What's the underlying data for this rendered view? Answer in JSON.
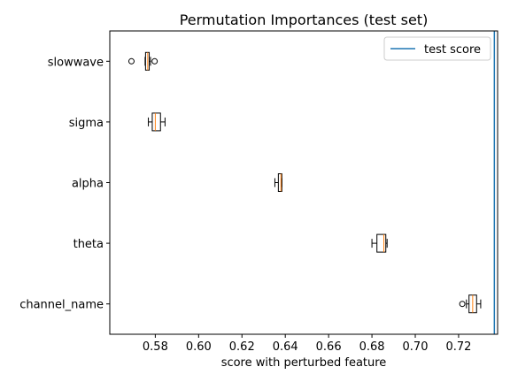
{
  "chart_data": {
    "type": "boxplot",
    "orientation": "horizontal",
    "title": "Permutation Importances (test set)",
    "xlabel": "score with perturbed feature",
    "ylabel": "",
    "xlim": [
      0.559,
      0.738
    ],
    "xticks": [
      0.58,
      0.6,
      0.62,
      0.64,
      0.66,
      0.68,
      0.7,
      0.72
    ],
    "xtick_labels": [
      "0.58",
      "0.60",
      "0.62",
      "0.64",
      "0.66",
      "0.68",
      "0.70",
      "0.72"
    ],
    "grid": false,
    "legend": {
      "position": "top-right",
      "entries": [
        "test score"
      ]
    },
    "categories": [
      "slowwave",
      "sigma",
      "alpha",
      "theta",
      "channel_name"
    ],
    "boxes": [
      {
        "name": "slowwave",
        "whisker_low": 0.5753,
        "q1": 0.5755,
        "median": 0.5765,
        "q3": 0.5772,
        "whisker_high": 0.5778,
        "outliers": [
          0.569,
          0.5797
        ]
      },
      {
        "name": "sigma",
        "whisker_low": 0.5768,
        "q1": 0.5786,
        "median": 0.58,
        "q3": 0.5824,
        "whisker_high": 0.5845,
        "outliers": []
      },
      {
        "name": "alpha",
        "whisker_low": 0.6352,
        "q1": 0.6368,
        "median": 0.638,
        "q3": 0.6384,
        "whisker_high": 0.6384,
        "outliers": []
      },
      {
        "name": "theta",
        "whisker_low": 0.68,
        "q1": 0.6823,
        "median": 0.6855,
        "q3": 0.6864,
        "whisker_high": 0.687,
        "outliers": []
      },
      {
        "name": "channel_name",
        "whisker_low": 0.7236,
        "q1": 0.7248,
        "median": 0.7265,
        "q3": 0.7283,
        "whisker_high": 0.7302,
        "outliers": [
          0.7217
        ]
      }
    ],
    "reference_line": {
      "name": "test score",
      "x": 0.7365
    },
    "colors": {
      "box": "#000000",
      "median": "#ff7f0e",
      "reference_line": "#1f77b4"
    }
  }
}
